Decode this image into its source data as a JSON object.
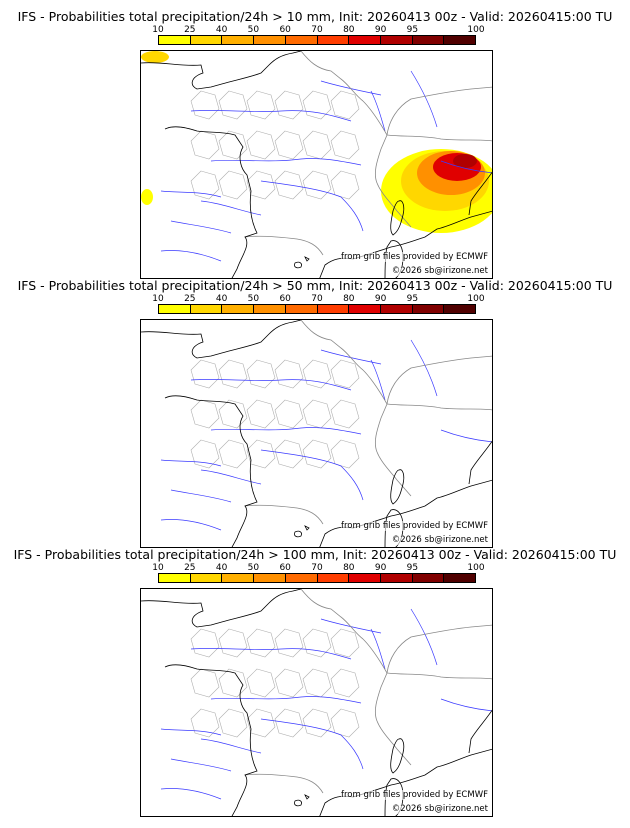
{
  "colorbar": {
    "ticks": [
      "10",
      "25",
      "40",
      "50",
      "60",
      "70",
      "80",
      "90",
      "95",
      "100"
    ],
    "colors": [
      "#ffff00",
      "#ffd700",
      "#ffb000",
      "#ff9000",
      "#ff6a00",
      "#ff3d00",
      "#e00000",
      "#b00000",
      "#800000",
      "#500000"
    ]
  },
  "panels": [
    {
      "title": "IFS - Probabilities total precipitation/24h > 10 mm, Init: 20260413 00z - Valid: 20260415:00 TU",
      "credit_source": "from grib files provided by ECMWF",
      "credit_copyright": "©2026 sb@irizone.net",
      "has_precip": true
    },
    {
      "title": "IFS - Probabilities total precipitation/24h > 50 mm, Init: 20260413 00z - Valid: 20260415:00 TU",
      "credit_source": "from grib files provided by ECMWF",
      "credit_copyright": "©2026 sb@irizone.net",
      "has_precip": false
    },
    {
      "title": "IFS - Probabilities total precipitation/24h > 100 mm, Init: 20260413 00z - Valid: 20260415:00 TU",
      "credit_source": "from grib files provided by ECMWF",
      "credit_copyright": "©2026 sb@irizone.net",
      "has_precip": false
    }
  ]
}
